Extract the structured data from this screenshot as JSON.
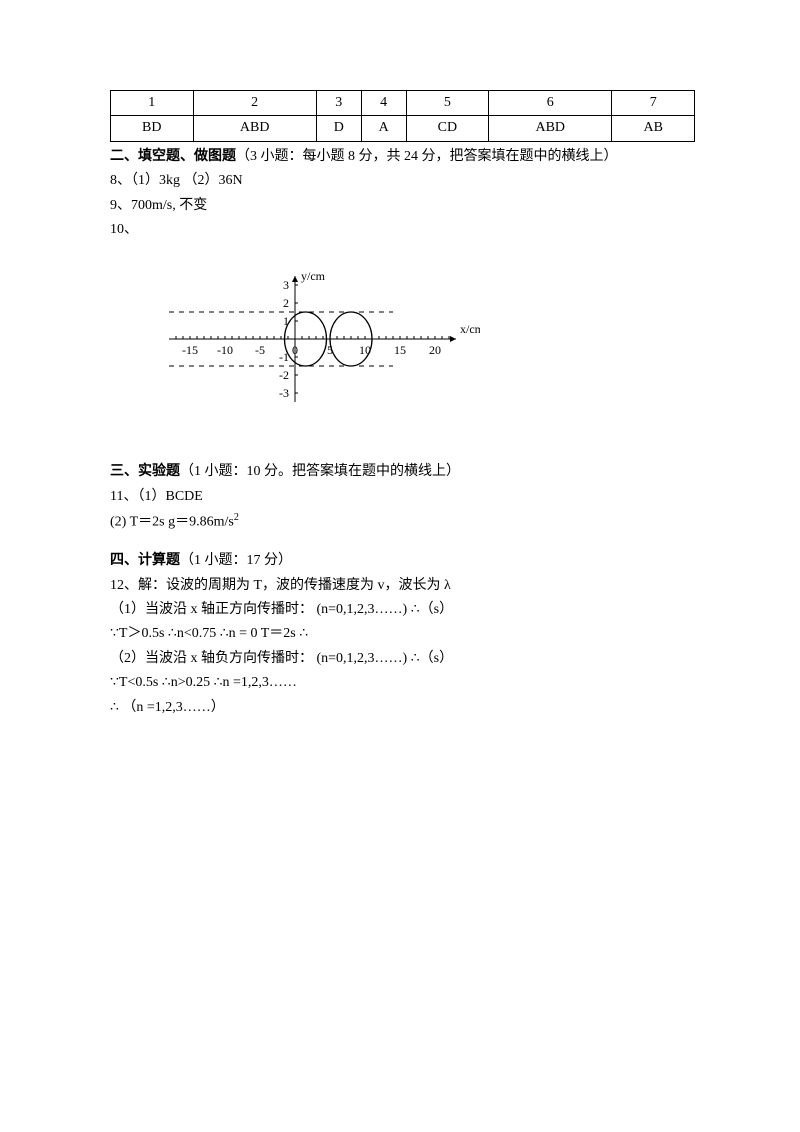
{
  "answer_table": {
    "headers": [
      "1",
      "2",
      "3",
      "4",
      "5",
      "6",
      "7"
    ],
    "answers": [
      "BD",
      "ABD",
      "D",
      "A",
      "CD",
      "ABD",
      "AB"
    ]
  },
  "section2": {
    "title_bold": "二、填空题、做图题",
    "title_rest": "（3 小题：每小题 8 分，共 24 分，把答案填在题中的横线上）",
    "q8": "8、（1）3kg    （2）36N",
    "q9": "9、700m/s,   不变",
    "q10_label": "10、"
  },
  "chart": {
    "x_label": "x/cm",
    "y_label": "y/cm",
    "x_ticks": [
      -15,
      -10,
      -5,
      0,
      5,
      10,
      15,
      20
    ],
    "y_ticks": [
      -3,
      -2,
      -1,
      1,
      2,
      3
    ],
    "wave_amplitude": 2,
    "dash_levels": [
      1.5,
      -1.5
    ],
    "axis_color": "#000000",
    "dash_color": "#000000",
    "wave_color": "#000000",
    "background": "#ffffff"
  },
  "section3": {
    "title_bold": "三、实验题",
    "title_rest": "（1 小题：10 分。把答案填在题中的横线上）",
    "q11a": "11、（1）BCDE",
    "q11b": "(2) T＝2s    g＝9.86m/s"
  },
  "section4": {
    "title_bold": "四、计算题",
    "title_rest": "（1 小题：17 分）",
    "l1": "12、解：设波的周期为 T，波的传播速度为 v，波长为 λ",
    "l2": "（1）当波沿 x 轴正方向传播时：  (n=0,1,2,3……)     ∴（s）",
    "l3": "∵T＞0.5s   ∴n<0.75   ∴n = 0    T＝2s    ∴",
    "l4": "（2）当波沿 x 轴负方向传播时：  (n=0,1,2,3……)     ∴（s）",
    "l5": "∵T<0.5s   ∴n>0.25   ∴n =1,2,3……",
    "l6": "∴      （n =1,2,3……）"
  }
}
